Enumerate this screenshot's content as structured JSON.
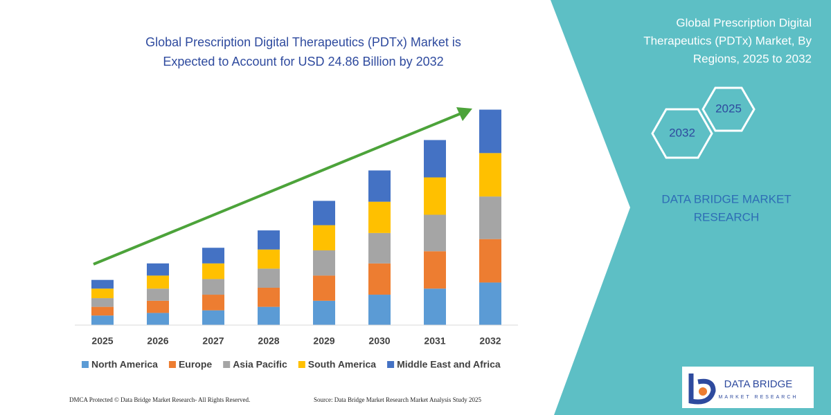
{
  "chart_data": {
    "type": "stacked-bar",
    "title": [
      "Global Prescription Digital Therapeutics (PDTx) Market is",
      "Expected to Account for USD 24.86 Billion by 2032"
    ],
    "categories": [
      "2025",
      "2026",
      "2027",
      "2028",
      "2029",
      "2030",
      "2031",
      "2032"
    ],
    "series": [
      {
        "name": "North America",
        "color": "#5b9bd5",
        "values": [
          1.1,
          1.4,
          1.7,
          2.1,
          2.8,
          3.5,
          4.2,
          4.9
        ]
      },
      {
        "name": "Europe",
        "color": "#ed7d31",
        "values": [
          1.0,
          1.4,
          1.8,
          2.2,
          2.9,
          3.6,
          4.3,
          5.0
        ]
      },
      {
        "name": "Asia Pacific",
        "color": "#a5a5a5",
        "values": [
          1.0,
          1.4,
          1.8,
          2.2,
          2.9,
          3.5,
          4.2,
          4.9
        ]
      },
      {
        "name": "South America",
        "color": "#ffc000",
        "values": [
          1.1,
          1.5,
          1.8,
          2.2,
          2.9,
          3.6,
          4.3,
          5.0
        ]
      },
      {
        "name": "Middle East and Africa",
        "color": "#4472c4",
        "values": [
          1.0,
          1.4,
          1.8,
          2.2,
          2.8,
          3.6,
          4.3,
          5.0
        ]
      }
    ],
    "ylim": [
      0,
      25
    ]
  },
  "panel": {
    "title": [
      "Global Prescription Digital",
      "Therapeutics (PDTx) Market, By",
      "Regions, 2025 to 2032"
    ],
    "hexagons": [
      "2025",
      "2032"
    ],
    "brand": [
      "DATA BRIDGE MARKET",
      "RESEARCH"
    ]
  },
  "footer": {
    "left": "DMCA Protected © Data Bridge Market Research-  All Rights Reserved.",
    "right": "Source: Data Bridge Market Research  Market Analysis Study 2025"
  },
  "logo": {
    "name": "DATA BRIDGE",
    "tagline": "MARKET RESEARCH"
  }
}
